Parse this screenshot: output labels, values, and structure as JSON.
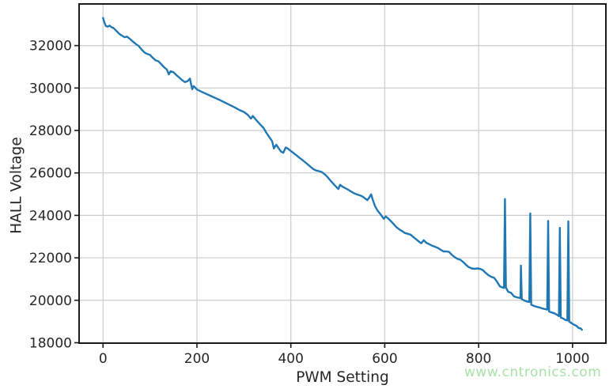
{
  "watermark": {
    "text": "www.cntronics.com",
    "color": "#a8e2a8"
  },
  "chart_data": {
    "type": "line",
    "title": "",
    "xlabel": "PWM Setting",
    "ylabel": "HALL Voltage",
    "x_ticks": [
      0,
      200,
      400,
      600,
      800,
      1000
    ],
    "y_ticks": [
      18000,
      20000,
      22000,
      24000,
      26000,
      28000,
      30000,
      32000
    ],
    "xlim": [
      -51,
      1071
    ],
    "ylim": [
      17980,
      33960
    ],
    "grid": true,
    "legend": "none",
    "line_color": "#1f77b4",
    "grid_color": "#cccccc",
    "spine_color": "#1a1a1a",
    "text_color": "#262626",
    "series": [
      {
        "name": "HALL Voltage",
        "points": [
          [
            0,
            33300
          ],
          [
            3,
            33080
          ],
          [
            6,
            32920
          ],
          [
            10,
            32890
          ],
          [
            14,
            32940
          ],
          [
            18,
            32860
          ],
          [
            22,
            32830
          ],
          [
            28,
            32700
          ],
          [
            34,
            32560
          ],
          [
            40,
            32470
          ],
          [
            46,
            32390
          ],
          [
            51,
            32420
          ],
          [
            58,
            32300
          ],
          [
            64,
            32180
          ],
          [
            70,
            32070
          ],
          [
            76,
            31980
          ],
          [
            82,
            31820
          ],
          [
            89,
            31660
          ],
          [
            95,
            31600
          ],
          [
            100,
            31560
          ],
          [
            106,
            31420
          ],
          [
            112,
            31300
          ],
          [
            118,
            31260
          ],
          [
            124,
            31120
          ],
          [
            130,
            30980
          ],
          [
            136,
            30870
          ],
          [
            140,
            30640
          ],
          [
            144,
            30790
          ],
          [
            150,
            30740
          ],
          [
            156,
            30610
          ],
          [
            162,
            30500
          ],
          [
            168,
            30380
          ],
          [
            174,
            30280
          ],
          [
            180,
            30320
          ],
          [
            185,
            30445
          ],
          [
            188,
            30120
          ],
          [
            190,
            29945
          ],
          [
            193,
            30090
          ],
          [
            197,
            30000
          ],
          [
            200,
            29930
          ],
          [
            210,
            29820
          ],
          [
            220,
            29720
          ],
          [
            230,
            29620
          ],
          [
            240,
            29520
          ],
          [
            250,
            29420
          ],
          [
            260,
            29310
          ],
          [
            270,
            29200
          ],
          [
            280,
            29090
          ],
          [
            290,
            28970
          ],
          [
            300,
            28870
          ],
          [
            308,
            28740
          ],
          [
            315,
            28560
          ],
          [
            319,
            28680
          ],
          [
            326,
            28500
          ],
          [
            334,
            28300
          ],
          [
            342,
            28110
          ],
          [
            348,
            27890
          ],
          [
            354,
            27690
          ],
          [
            360,
            27500
          ],
          [
            364,
            27150
          ],
          [
            369,
            27330
          ],
          [
            374,
            27160
          ],
          [
            379,
            27010
          ],
          [
            384,
            26950
          ],
          [
            389,
            27200
          ],
          [
            394,
            27140
          ],
          [
            400,
            27030
          ],
          [
            406,
            26930
          ],
          [
            412,
            26830
          ],
          [
            418,
            26720
          ],
          [
            424,
            26620
          ],
          [
            430,
            26510
          ],
          [
            436,
            26400
          ],
          [
            442,
            26290
          ],
          [
            448,
            26180
          ],
          [
            454,
            26110
          ],
          [
            460,
            26080
          ],
          [
            466,
            26040
          ],
          [
            472,
            25940
          ],
          [
            478,
            25810
          ],
          [
            484,
            25650
          ],
          [
            490,
            25500
          ],
          [
            496,
            25360
          ],
          [
            501,
            25240
          ],
          [
            505,
            25440
          ],
          [
            510,
            25350
          ],
          [
            516,
            25280
          ],
          [
            522,
            25210
          ],
          [
            528,
            25130
          ],
          [
            534,
            25050
          ],
          [
            540,
            24990
          ],
          [
            546,
            24950
          ],
          [
            552,
            24900
          ],
          [
            558,
            24800
          ],
          [
            563,
            24720
          ],
          [
            567,
            24840
          ],
          [
            571,
            24990
          ],
          [
            575,
            24700
          ],
          [
            579,
            24450
          ],
          [
            584,
            24250
          ],
          [
            590,
            24080
          ],
          [
            594,
            23960
          ],
          [
            598,
            23840
          ],
          [
            602,
            23950
          ],
          [
            607,
            23860
          ],
          [
            613,
            23730
          ],
          [
            619,
            23590
          ],
          [
            625,
            23440
          ],
          [
            631,
            23340
          ],
          [
            637,
            23260
          ],
          [
            643,
            23170
          ],
          [
            649,
            23130
          ],
          [
            655,
            23090
          ],
          [
            661,
            22980
          ],
          [
            667,
            22870
          ],
          [
            673,
            22760
          ],
          [
            678,
            22690
          ],
          [
            683,
            22830
          ],
          [
            689,
            22700
          ],
          [
            695,
            22640
          ],
          [
            701,
            22570
          ],
          [
            707,
            22520
          ],
          [
            713,
            22470
          ],
          [
            719,
            22380
          ],
          [
            725,
            22300
          ],
          [
            731,
            22300
          ],
          [
            737,
            22280
          ],
          [
            743,
            22140
          ],
          [
            749,
            22030
          ],
          [
            755,
            21950
          ],
          [
            761,
            21910
          ],
          [
            767,
            21800
          ],
          [
            773,
            21670
          ],
          [
            779,
            21560
          ],
          [
            785,
            21500
          ],
          [
            791,
            21480
          ],
          [
            797,
            21500
          ],
          [
            803,
            21480
          ],
          [
            809,
            21420
          ],
          [
            815,
            21290
          ],
          [
            821,
            21180
          ],
          [
            827,
            21100
          ],
          [
            833,
            21060
          ],
          [
            839,
            20880
          ],
          [
            845,
            20660
          ],
          [
            851,
            20600
          ],
          [
            854,
            20580
          ],
          [
            856,
            24770
          ],
          [
            858,
            20600
          ],
          [
            863,
            20400
          ],
          [
            869,
            20350
          ],
          [
            875,
            20190
          ],
          [
            881,
            20140
          ],
          [
            887,
            20110
          ],
          [
            889,
            20100
          ],
          [
            890,
            21630
          ],
          [
            892,
            20050
          ],
          [
            897,
            19990
          ],
          [
            903,
            19940
          ],
          [
            908,
            19920
          ],
          [
            910,
            24090
          ],
          [
            912,
            19790
          ],
          [
            918,
            19730
          ],
          [
            924,
            19690
          ],
          [
            930,
            19660
          ],
          [
            936,
            19610
          ],
          [
            942,
            19580
          ],
          [
            946,
            19560
          ],
          [
            948,
            23740
          ],
          [
            950,
            19470
          ],
          [
            956,
            19420
          ],
          [
            962,
            19380
          ],
          [
            968,
            19300
          ],
          [
            971,
            19250
          ],
          [
            973,
            23410
          ],
          [
            975,
            19180
          ],
          [
            980,
            19140
          ],
          [
            985,
            19070
          ],
          [
            989,
            19050
          ],
          [
            991,
            23720
          ],
          [
            993,
            18990
          ],
          [
            998,
            18920
          ],
          [
            1003,
            18850
          ],
          [
            1008,
            18800
          ],
          [
            1013,
            18690
          ],
          [
            1017,
            18680
          ],
          [
            1020,
            18610
          ]
        ]
      }
    ]
  }
}
